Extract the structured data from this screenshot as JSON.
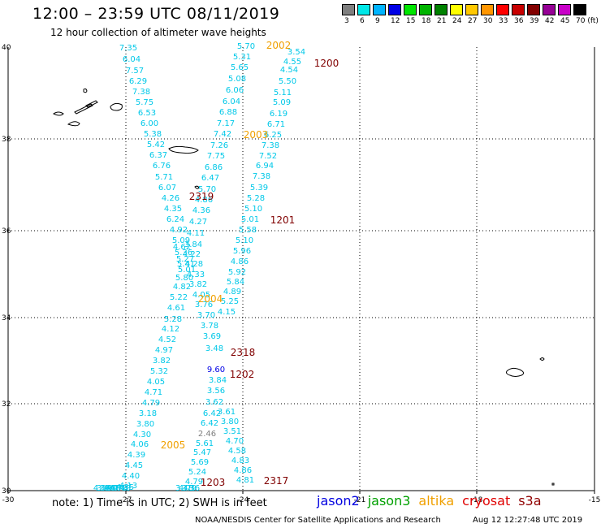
{
  "header": {
    "title": "12:00 – 23:59 UTC 08/11/2019",
    "subtitle": "12 hour collection of altimeter wave heights"
  },
  "colorbar": {
    "labels": [
      "3",
      "6",
      "9",
      "12",
      "15",
      "18",
      "21",
      "24",
      "27",
      "30",
      "33",
      "36",
      "39",
      "42",
      "45",
      "70 (ft)"
    ],
    "colors": [
      "#7f7f7f",
      "#00e8e8",
      "#00b4ff",
      "#0000e6",
      "#00e600",
      "#00b400",
      "#008200",
      "#ffff00",
      "#ffc800",
      "#ff9600",
      "#ff0000",
      "#c80000",
      "#820000",
      "#960096",
      "#c800c8",
      "#000000"
    ]
  },
  "axes": {
    "lat_labels": [
      "40",
      "38",
      "36",
      "34",
      "32",
      "30"
    ],
    "lon_labels": [
      "-30",
      "-27",
      "-24",
      "-21",
      "-18",
      "-15"
    ]
  },
  "passes": [
    {
      "id": "2002",
      "color": "#f0a000"
    },
    {
      "id": "1200",
      "color": "#800000"
    },
    {
      "id": "2003",
      "color": "#f0a000"
    },
    {
      "id": "2319",
      "color": "#800000"
    },
    {
      "id": "1201",
      "color": "#800000"
    },
    {
      "id": "2004",
      "color": "#f0a000"
    },
    {
      "id": "2318",
      "color": "#800000"
    },
    {
      "id": "1202",
      "color": "#800000"
    },
    {
      "id": "2005",
      "color": "#f0a000"
    },
    {
      "id": "1203",
      "color": "#800000"
    },
    {
      "id": "2317",
      "color": "#800000"
    }
  ],
  "wave_heights": [
    {
      "v": "7.35"
    },
    {
      "v": "6.04"
    },
    {
      "v": "7.57"
    },
    {
      "v": "6.29"
    },
    {
      "v": "7.38"
    },
    {
      "v": "5.75"
    },
    {
      "v": "6.53"
    },
    {
      "v": "6.00"
    },
    {
      "v": "5.38"
    },
    {
      "v": "5.42"
    },
    {
      "v": "6.37"
    },
    {
      "v": "6.76"
    },
    {
      "v": "5.71"
    },
    {
      "v": "6.07"
    },
    {
      "v": "4.26"
    },
    {
      "v": "4.35"
    },
    {
      "v": "6.24"
    },
    {
      "v": "4.92"
    },
    {
      "v": "5.09"
    },
    {
      "v": "4.62"
    },
    {
      "v": "5.36"
    },
    {
      "v": "5.27"
    },
    {
      "v": "5.41"
    },
    {
      "v": "5.01"
    },
    {
      "v": "5.80"
    },
    {
      "v": "4.82"
    },
    {
      "v": "5.22"
    },
    {
      "v": "4.61"
    },
    {
      "v": "5.28"
    },
    {
      "v": "4.12"
    },
    {
      "v": "4.52"
    },
    {
      "v": "4.97"
    },
    {
      "v": "3.82"
    },
    {
      "v": "5.32"
    },
    {
      "v": "4.05"
    },
    {
      "v": "4.71"
    },
    {
      "v": "4.79"
    },
    {
      "v": "3.18"
    },
    {
      "v": "3.80"
    },
    {
      "v": "4.30"
    },
    {
      "v": "4.06"
    },
    {
      "v": "4.39"
    },
    {
      "v": "4.45"
    },
    {
      "v": "4.40"
    },
    {
      "v": "4.13"
    },
    {
      "v": "4.35"
    },
    {
      "v": "4.40"
    },
    {
      "v": "4.78"
    },
    {
      "v": "4.74"
    },
    {
      "v": "4.56"
    },
    {
      "v": "3.90"
    },
    {
      "v": "3.94"
    },
    {
      "v": "4.09"
    },
    {
      "v": "5.70"
    },
    {
      "v": "5.31"
    },
    {
      "v": "5.65"
    },
    {
      "v": "5.08"
    },
    {
      "v": "6.06"
    },
    {
      "v": "6.04"
    },
    {
      "v": "6.88"
    },
    {
      "v": "7.17"
    },
    {
      "v": "7.42"
    },
    {
      "v": "7.26"
    },
    {
      "v": "7.75"
    },
    {
      "v": "6.86"
    },
    {
      "v": "6.47"
    },
    {
      "v": "5.70"
    },
    {
      "v": "4.86"
    },
    {
      "v": "4.36"
    },
    {
      "v": "4.27"
    },
    {
      "v": "4.11"
    },
    {
      "v": "3.84"
    },
    {
      "v": "4.22"
    },
    {
      "v": "4.28"
    },
    {
      "v": "4.33"
    },
    {
      "v": "3.82"
    },
    {
      "v": "4.05"
    },
    {
      "v": "3.76"
    },
    {
      "v": "3.70"
    },
    {
      "v": "3.78"
    },
    {
      "v": "3.69"
    },
    {
      "v": "3.48"
    },
    {
      "v": "9.60"
    },
    {
      "v": "3.84"
    },
    {
      "v": "3.56"
    },
    {
      "v": "3.62"
    },
    {
      "v": "6.42"
    },
    {
      "v": "6.42"
    },
    {
      "v": "2.46"
    },
    {
      "v": "5.61"
    },
    {
      "v": "5.47"
    },
    {
      "v": "5.69"
    },
    {
      "v": "5.24"
    },
    {
      "v": "4.79"
    },
    {
      "v": "3.36"
    },
    {
      "v": "4.79"
    },
    {
      "v": "3.48"
    },
    {
      "v": "3.54"
    },
    {
      "v": "4.55"
    },
    {
      "v": "4.54"
    },
    {
      "v": "5.50"
    },
    {
      "v": "5.11"
    },
    {
      "v": "5.09"
    },
    {
      "v": "6.19"
    },
    {
      "v": "6.71"
    },
    {
      "v": "6.25"
    },
    {
      "v": "7.38"
    },
    {
      "v": "7.52"
    },
    {
      "v": "6.94"
    },
    {
      "v": "7.38"
    },
    {
      "v": "5.39"
    },
    {
      "v": "5.28"
    },
    {
      "v": "5.10"
    },
    {
      "v": "5.01"
    },
    {
      "v": "5.58"
    },
    {
      "v": "5.10"
    },
    {
      "v": "5.96"
    },
    {
      "v": "4.86"
    },
    {
      "v": "5.92"
    },
    {
      "v": "5.84"
    },
    {
      "v": "4.89"
    },
    {
      "v": "5.25"
    },
    {
      "v": "4.15"
    },
    {
      "v": "3.61"
    },
    {
      "v": "3.80"
    },
    {
      "v": "3.51"
    },
    {
      "v": "4.70"
    },
    {
      "v": "4.58"
    },
    {
      "v": "4.83"
    },
    {
      "v": "4.86"
    },
    {
      "v": "4.81"
    }
  ],
  "footer": {
    "note": "note:  1) Time is in UTC;  2) SWH is in feet",
    "satellites": [
      {
        "name": "jason2",
        "color": "#0000e0"
      },
      {
        "name": "jason3",
        "color": "#00a000"
      },
      {
        "name": "altika",
        "color": "#f0a000"
      },
      {
        "name": "cryosat",
        "color": "#e00000"
      },
      {
        "name": "s3a",
        "color": "#900000"
      }
    ],
    "credit": "NOAA/NESDIS Center for Satellite Applications and Research",
    "timestamp": "Aug 12 12:27:48 UTC 2019"
  }
}
